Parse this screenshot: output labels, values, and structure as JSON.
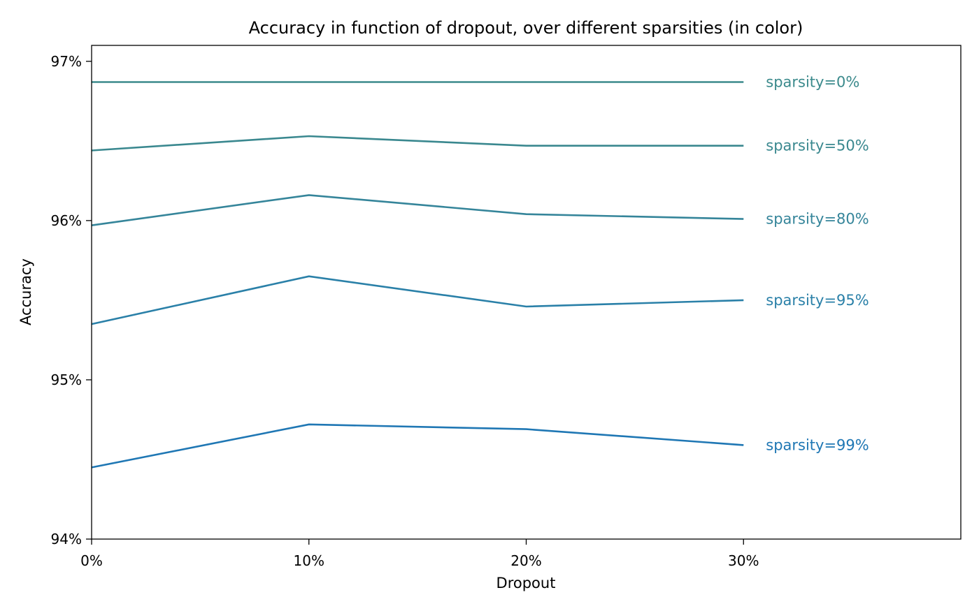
{
  "chart_data": {
    "type": "line",
    "title": "Accuracy in function of dropout, over different sparsities (in color)",
    "xlabel": "Dropout",
    "ylabel": "Accuracy",
    "x": [
      0,
      10,
      20,
      30
    ],
    "xlim": [
      0,
      40
    ],
    "ylim": [
      94,
      97.1
    ],
    "x_ticks": [
      {
        "value": 0,
        "label": "0%"
      },
      {
        "value": 10,
        "label": "10%"
      },
      {
        "value": 20,
        "label": "20%"
      },
      {
        "value": 30,
        "label": "30%"
      }
    ],
    "y_ticks": [
      {
        "value": 94,
        "label": "94%"
      },
      {
        "value": 95,
        "label": "95%"
      },
      {
        "value": 96,
        "label": "96%"
      },
      {
        "value": 97,
        "label": "97%"
      }
    ],
    "grid": false,
    "legend": "inline labels at right end of each line",
    "series": [
      {
        "name": "sparsity=0%",
        "color": "#3b8a8c",
        "values": [
          96.87,
          96.87,
          96.87,
          96.87
        ]
      },
      {
        "name": "sparsity=50%",
        "color": "#3a888f",
        "values": [
          96.44,
          96.53,
          96.47,
          96.47
        ]
      },
      {
        "name": "sparsity=80%",
        "color": "#35859a",
        "values": [
          95.97,
          96.16,
          96.04,
          96.01
        ]
      },
      {
        "name": "sparsity=95%",
        "color": "#2a80a8",
        "values": [
          95.35,
          95.65,
          95.46,
          95.5
        ]
      },
      {
        "name": "sparsity=99%",
        "color": "#1f77b4",
        "values": [
          94.45,
          94.72,
          94.69,
          94.59
        ]
      }
    ]
  }
}
